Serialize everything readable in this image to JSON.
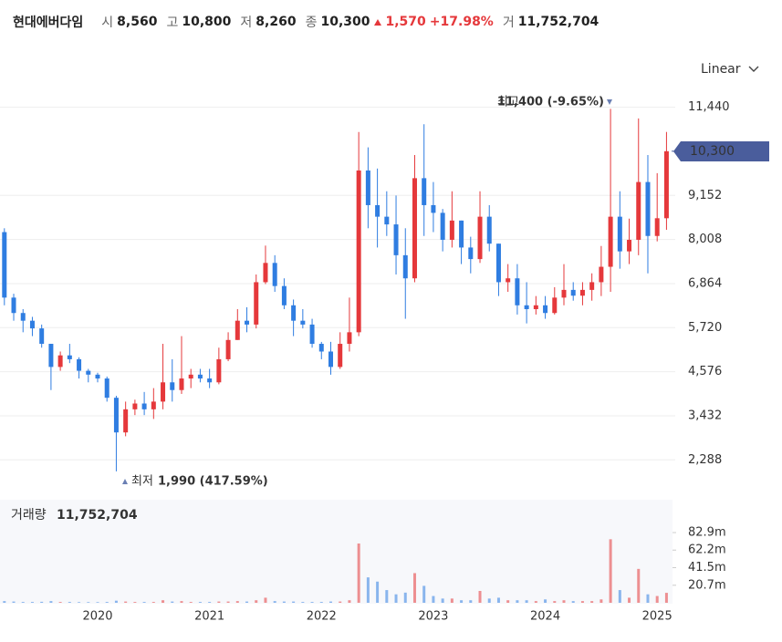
{
  "header": {
    "name": "현대에버다임",
    "items": [
      {
        "label": "시",
        "value": "8,560"
      },
      {
        "label": "고",
        "value": "10,800"
      },
      {
        "label": "저",
        "value": "8,260"
      },
      {
        "label": "종",
        "value": "10,300"
      }
    ],
    "change": "1,570",
    "change_pct": "+17.98%",
    "volume_label": "거",
    "volume": "11,752,704"
  },
  "chart_data": {
    "type": "candlestick",
    "scale": "Linear",
    "grid": true,
    "up_color": "#e5383b",
    "down_color": "#2f7de1",
    "categories": [
      null,
      null,
      null,
      null,
      null,
      null,
      null,
      null,
      null,
      null,
      "2020",
      null,
      null,
      null,
      null,
      null,
      null,
      null,
      null,
      null,
      null,
      null,
      "2021",
      null,
      null,
      null,
      null,
      null,
      null,
      null,
      null,
      null,
      null,
      null,
      "2022",
      null,
      null,
      null,
      null,
      null,
      null,
      null,
      null,
      null,
      null,
      null,
      "2023",
      null,
      null,
      null,
      null,
      null,
      null,
      null,
      null,
      null,
      null,
      null,
      "2024",
      null,
      null,
      null,
      null,
      null,
      null,
      null,
      null,
      null,
      null,
      null,
      "2025",
      null
    ],
    "open": [
      8200,
      6500,
      6100,
      5900,
      5700,
      5300,
      4700,
      5000,
      4900,
      4600,
      4500,
      4400,
      3900,
      3000,
      3600,
      3750,
      3600,
      3800,
      4300,
      4100,
      4400,
      4500,
      4400,
      4300,
      4900,
      5400,
      5900,
      5800,
      6900,
      7400,
      6800,
      6300,
      5900,
      5800,
      5300,
      5100,
      4700,
      5300,
      5600,
      9800,
      8900,
      8600,
      8400,
      7600,
      7000,
      9600,
      8900,
      8700,
      8000,
      8500,
      7800,
      7500,
      8600,
      7900,
      6900,
      7000,
      6300,
      6200,
      6300,
      6100,
      6500,
      6700,
      6550,
      6700,
      6900,
      7300,
      8600,
      7700,
      8000,
      9500,
      8100,
      8560
    ],
    "high": [
      8300,
      6600,
      6200,
      6000,
      5800,
      5300,
      5100,
      5300,
      4950,
      4650,
      4550,
      4450,
      3950,
      3800,
      3850,
      4050,
      4150,
      5300,
      4900,
      5500,
      4650,
      4650,
      4650,
      5200,
      5600,
      6200,
      6250,
      7100,
      7850,
      7600,
      7000,
      6450,
      6200,
      5950,
      5350,
      5350,
      5600,
      6500,
      10800,
      10400,
      9850,
      9260,
      9150,
      8300,
      10200,
      11000,
      9500,
      8800,
      9260,
      8500,
      8080,
      9260,
      8900,
      7900,
      7370,
      7370,
      6900,
      6540,
      6540,
      6770,
      7370,
      6900,
      6900,
      7130,
      7840,
      11400,
      9260,
      8550,
      11150,
      10200,
      9730,
      10800
    ],
    "low": [
      6300,
      5900,
      5600,
      5500,
      5200,
      4100,
      4600,
      4800,
      4400,
      4300,
      4300,
      3800,
      1990,
      2900,
      3450,
      3450,
      3350,
      3600,
      3800,
      4000,
      4150,
      4300,
      4150,
      4250,
      4850,
      5400,
      5600,
      5700,
      6850,
      6650,
      6200,
      5500,
      5700,
      5200,
      4900,
      4500,
      4650,
      5100,
      5500,
      8300,
      7800,
      8100,
      7100,
      5950,
      6900,
      8100,
      8200,
      7700,
      7800,
      7370,
      7130,
      7400,
      7700,
      6540,
      6650,
      6060,
      5830,
      6060,
      5950,
      6060,
      6300,
      6420,
      6300,
      6420,
      6540,
      6650,
      7250,
      7370,
      7600,
      7130,
      7960,
      8260
    ],
    "close": [
      6500,
      6100,
      5900,
      5700,
      5300,
      4700,
      5000,
      4900,
      4600,
      4500,
      4400,
      3900,
      3000,
      3600,
      3750,
      3600,
      3800,
      4300,
      4100,
      4400,
      4500,
      4400,
      4300,
      4900,
      5400,
      5900,
      5800,
      6900,
      7400,
      6800,
      6300,
      5900,
      5800,
      5300,
      5100,
      4700,
      5300,
      5600,
      9800,
      8900,
      8600,
      8400,
      7600,
      7000,
      9600,
      8900,
      8700,
      8000,
      8500,
      7800,
      7500,
      8600,
      7900,
      6900,
      7000,
      6300,
      6200,
      6300,
      6100,
      6500,
      6700,
      6550,
      6700,
      6900,
      7300,
      8600,
      7700,
      8000,
      9500,
      8100,
      8560,
      10300
    ],
    "volume": [
      2,
      1.5,
      1,
      1,
      1.2,
      2,
      1,
      1,
      0.8,
      0.8,
      0.8,
      1,
      2.5,
      1.5,
      1,
      1,
      1,
      3,
      1.5,
      2,
      1,
      1,
      1,
      1.5,
      1.5,
      2,
      1.5,
      3,
      6,
      2,
      1.5,
      1.5,
      1,
      1,
      1,
      1.5,
      1.5,
      3,
      70,
      30,
      25,
      15,
      10,
      12,
      35,
      20,
      8,
      5,
      5,
      3,
      3,
      14,
      5,
      6,
      3,
      3,
      3,
      2,
      4,
      2,
      3,
      2,
      2,
      2,
      4,
      75,
      15,
      6,
      40,
      10,
      8,
      11.75
    ],
    "ylim": [
      1300,
      12000
    ],
    "yticks": [
      {
        "value": 2288,
        "label": "2,288"
      },
      {
        "value": 3432,
        "label": "3,432"
      },
      {
        "value": 4576,
        "label": "4,576"
      },
      {
        "value": 5720,
        "label": "5,720"
      },
      {
        "value": 6864,
        "label": "6,864"
      },
      {
        "value": 8008,
        "label": "8,008"
      },
      {
        "value": 9152,
        "label": "9,152"
      },
      {
        "value": 11440,
        "label": "11,440"
      }
    ],
    "current_price": {
      "value": 10300,
      "label": "10,300"
    },
    "annotations": [
      {
        "label": "최고",
        "text": "11,400 (-9.65%)"
      },
      {
        "label": "최저",
        "text": "1,990 (417.59%)"
      }
    ],
    "volume_title": "거래량",
    "volume_last": "11,752,704",
    "vol_ylim": [
      0,
      82.9
    ],
    "vol_yticks": [
      {
        "value": 20.7,
        "label": "20.7m"
      },
      {
        "value": 41.5,
        "label": "41.5m"
      },
      {
        "value": 62.2,
        "label": "62.2m"
      },
      {
        "value": 82.9,
        "label": "82.9m"
      }
    ]
  }
}
